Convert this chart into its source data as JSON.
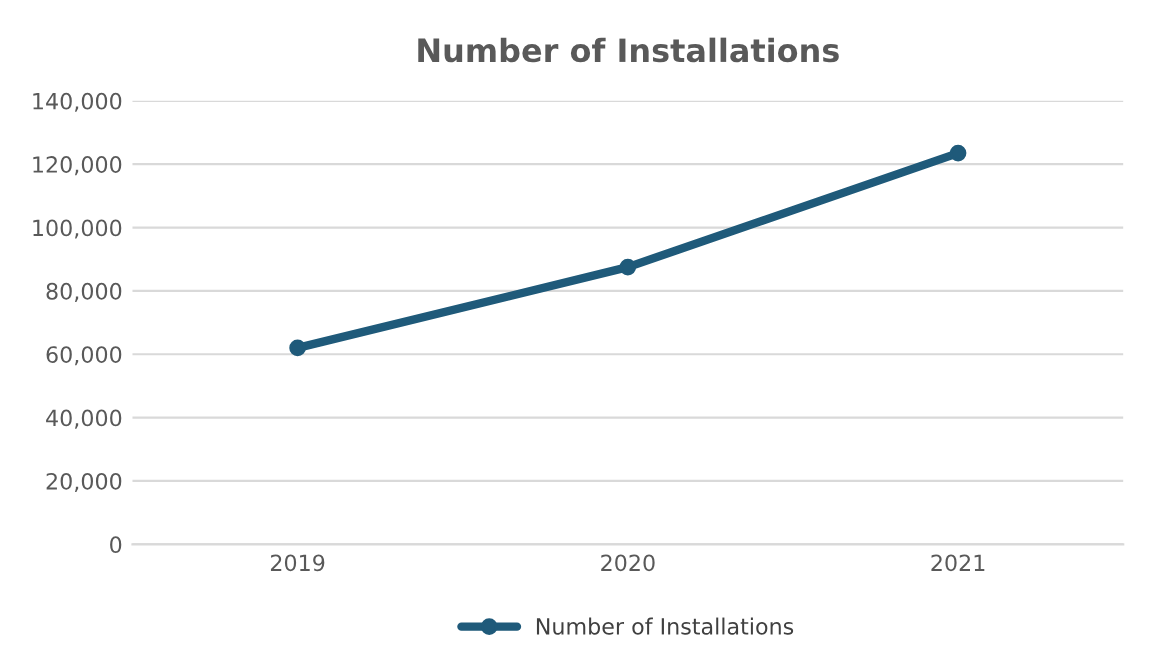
{
  "chart_data": {
    "type": "line",
    "title": "Number of Installations",
    "categories": [
      "2019",
      "2020",
      "2021"
    ],
    "series": [
      {
        "name": "Number of Installations",
        "color": "#1f5a7a",
        "values": [
          62000,
          87500,
          123500
        ]
      }
    ],
    "ylim": [
      0,
      140000
    ],
    "yticks": [
      {
        "value": 0,
        "label": "0"
      },
      {
        "value": 20000,
        "label": "20,000"
      },
      {
        "value": 40000,
        "label": "40,000"
      },
      {
        "value": 60000,
        "label": "60,000"
      },
      {
        "value": 80000,
        "label": "80,000"
      },
      {
        "value": 100000,
        "label": "100,000"
      },
      {
        "value": 120000,
        "label": "120,000"
      },
      {
        "value": 140000,
        "label": "140,000"
      }
    ],
    "grid": "y",
    "legend": "bottom",
    "marker": "circle",
    "line_style": "solid"
  }
}
